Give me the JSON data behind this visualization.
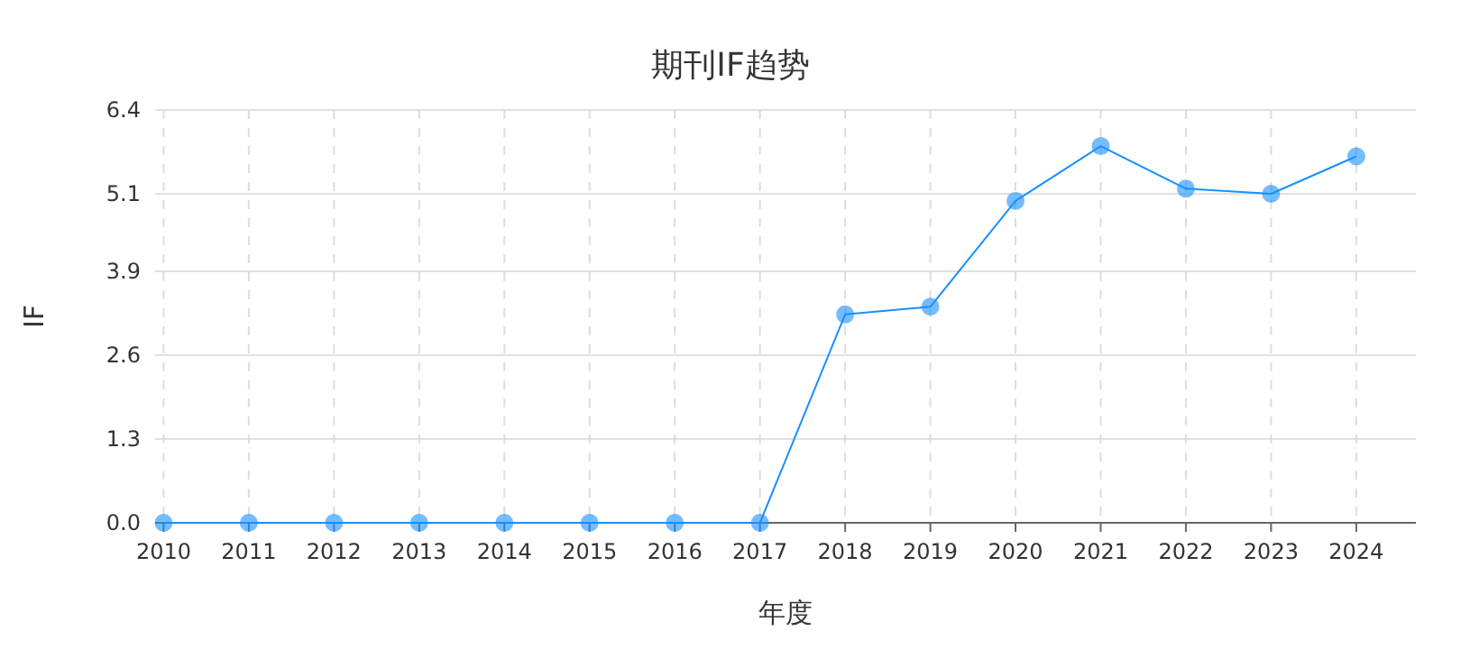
{
  "chart_data": {
    "type": "line",
    "title": "期刊IF趋势",
    "xlabel": "年度",
    "ylabel": "IF",
    "categories": [
      "2010",
      "2011",
      "2012",
      "2013",
      "2014",
      "2015",
      "2016",
      "2017",
      "2018",
      "2019",
      "2020",
      "2021",
      "2022",
      "2023",
      "2024"
    ],
    "series": [
      {
        "color": "#1890ff",
        "values": [
          0,
          0,
          0,
          0,
          0,
          0,
          0,
          0,
          3.23,
          3.35,
          4.99,
          5.84,
          5.18,
          5.1,
          5.68
        ]
      }
    ],
    "ylim": [
      0,
      6.4
    ],
    "yticks": [
      {
        "value": 0,
        "label": "0.0"
      },
      1.3,
      2.6,
      3.9,
      5.1,
      6.4
    ],
    "grid": true,
    "marker": "circle",
    "line_style": "solid"
  }
}
